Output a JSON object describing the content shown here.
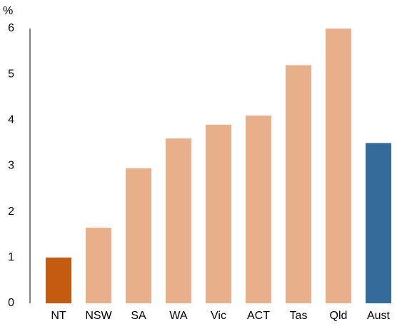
{
  "chart_data": {
    "type": "bar",
    "y_label": "%",
    "categories": [
      "NT",
      "NSW",
      "SA",
      "WA",
      "Vic",
      "ACT",
      "Tas",
      "Qld",
      "Aust"
    ],
    "values": [
      1.0,
      1.65,
      2.95,
      3.6,
      3.9,
      4.1,
      5.2,
      6.0,
      3.5
    ],
    "colors": [
      "#c55a11",
      "#e8b08a",
      "#e8b08a",
      "#e8b08a",
      "#e8b08a",
      "#e8b08a",
      "#e8b08a",
      "#e8b08a",
      "#336b9a"
    ],
    "ylim": [
      0,
      6
    ],
    "yticks": [
      0,
      1,
      2,
      3,
      4,
      5,
      6
    ],
    "grid": false
  }
}
